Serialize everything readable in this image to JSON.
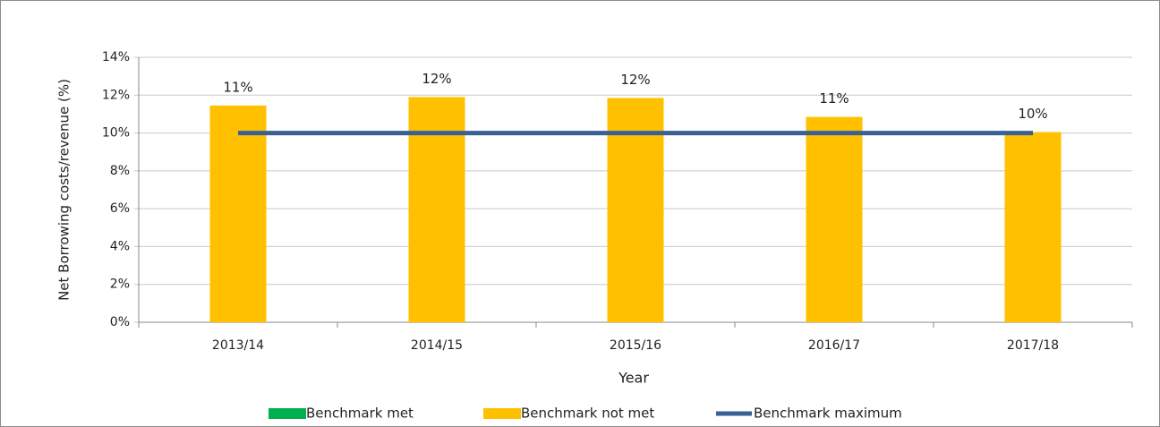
{
  "chart_data": {
    "type": "bar",
    "x_label": "Year",
    "y_label": "Net Borrowing costs/revenue (%)",
    "categories": [
      "2013/14",
      "2014/15",
      "2015/16",
      "2016/17",
      "2017/18"
    ],
    "series": [
      {
        "name": "Benchmark met",
        "type": "bar",
        "color": "#00b050",
        "values": [
          null,
          null,
          null,
          null,
          null
        ]
      },
      {
        "name": "Benchmark not  met",
        "type": "bar",
        "color": "#ffc000",
        "values": [
          11.45,
          11.9,
          11.85,
          10.85,
          10.05
        ],
        "value_labels": [
          "11%",
          "12%",
          "12%",
          "11%",
          "10%"
        ]
      },
      {
        "name": "Benchmark maximum",
        "type": "line",
        "color": "#3a6096",
        "values": [
          10,
          10,
          10,
          10,
          10
        ]
      }
    ],
    "ylim": [
      0,
      14
    ],
    "yticks": [
      {
        "value": 0,
        "label": "0%"
      },
      {
        "value": 2,
        "label": "2%"
      },
      {
        "value": 4,
        "label": "4%"
      },
      {
        "value": 6,
        "label": "6%"
      },
      {
        "value": 8,
        "label": "8%"
      },
      {
        "value": 10,
        "label": "10%"
      },
      {
        "value": 12,
        "label": "12%"
      },
      {
        "value": 14,
        "label": "14%"
      }
    ],
    "grid": true,
    "legend": "bottom"
  }
}
